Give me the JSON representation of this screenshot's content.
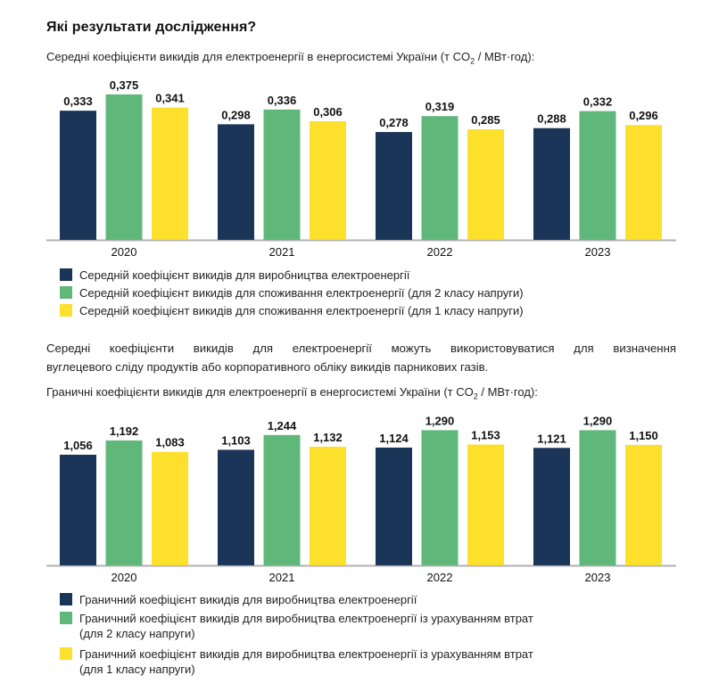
{
  "heading": "Які результати дослідження?",
  "colors": {
    "navy": "#1b3558",
    "green": "#5fb87a",
    "yellow": "#fce02c",
    "axis": "#b0b0b0"
  },
  "section1": {
    "subtitle_pre": "Середні коефіцієнти викидів для електроенергії в енергосистемі України (т CO",
    "subtitle_sub": "2",
    "subtitle_post": " / МВт·год):"
  },
  "paragraph": {
    "line1": "Середні коефіцієнти викидів для електроенергії можуть використовуватися для визначення",
    "line2": "вуглецевого сліду продуктів або корпоративного обліку викидів парникових газів."
  },
  "section2": {
    "subtitle_pre": "Граничні коефіцієнти викидів для електроенергії в енергосистемі України (т CO",
    "subtitle_sub": "2",
    "subtitle_post": " / МВт·год):"
  },
  "chart_data": [
    {
      "type": "bar",
      "title": "Середні коефіцієнти викидів для електроенергії в енергосистемі України (т CO2 / МВт·год)",
      "categories": [
        "2020",
        "2021",
        "2022",
        "2023"
      ],
      "series": [
        {
          "name": "Середній коефіцієнт викидів для виробництва електроенергії",
          "color": "#1b3558",
          "values": [
            0.333,
            0.298,
            0.278,
            0.288
          ],
          "labels": [
            "0,333",
            "0,298",
            "0,278",
            "0,288"
          ]
        },
        {
          "name": "Середній коефіцієнт викидів для споживання електроенергії (для 2 класу напруги)",
          "color": "#5fb87a",
          "values": [
            0.375,
            0.336,
            0.319,
            0.332
          ],
          "labels": [
            "0,375",
            "0,336",
            "0,319",
            "0,332"
          ]
        },
        {
          "name": "Середній коефіцієнт викидів для споживання електроенергії (для 1 класу напруги)",
          "color": "#fce02c",
          "values": [
            0.341,
            0.306,
            0.285,
            0.296
          ],
          "labels": [
            "0,341",
            "0,306",
            "0,285",
            "0,296"
          ]
        }
      ],
      "xlabel": "",
      "ylabel": "",
      "ylim": [
        0,
        0.375
      ],
      "grid": false,
      "legend": "bottom-left"
    },
    {
      "type": "bar",
      "title": "Граничні коефіцієнти викидів для електроенергії в енергосистемі України (т CO2 / МВт·год)",
      "categories": [
        "2020",
        "2021",
        "2022",
        "2023"
      ],
      "series": [
        {
          "name": "Граничний коефіцієнт викидів для виробництва електроенергії",
          "color": "#1b3558",
          "values": [
            1.056,
            1.103,
            1.124,
            1.121
          ],
          "labels": [
            "1,056",
            "1,103",
            "1,124",
            "1,121"
          ]
        },
        {
          "name": "Граничний коефіцієнт викидів для виробництва електроенергії із урахуванням втрат (для 2 класу напруги)",
          "color": "#5fb87a",
          "values": [
            1.192,
            1.244,
            1.29,
            1.29
          ],
          "labels": [
            "1,192",
            "1,244",
            "1,290",
            "1,290"
          ]
        },
        {
          "name": "Граничний коефіцієнт викидів для виробництва електроенергії із урахуванням втрат (для 1 класу напруги)",
          "color": "#fce02c",
          "values": [
            1.083,
            1.132,
            1.153,
            1.15
          ],
          "labels": [
            "1,083",
            "1,132",
            "1,153",
            "1,150"
          ]
        }
      ],
      "xlabel": "",
      "ylabel": "",
      "ylim": [
        0,
        1.29
      ],
      "grid": false,
      "legend": "bottom-left"
    }
  ],
  "legend1": [
    "Середній коефіцієнт викидів для виробництва електроенергії",
    "Середній коефіцієнт викидів для споживання електроенергії (для 2 класу напруги)",
    "Середній коефіцієнт викидів для споживання електроенергії (для 1 класу напруги)"
  ],
  "legend2": [
    "Граничний коефіцієнт викидів для виробництва електроенергії",
    "Граничний коефіцієнт викидів для виробництва електроенергії із урахуванням втрат",
    "(для 2 класу напруги)",
    "Граничний коефіцієнт викидів для виробництва електроенергії із урахуванням втрат",
    "(для 1 класу напруги)"
  ]
}
